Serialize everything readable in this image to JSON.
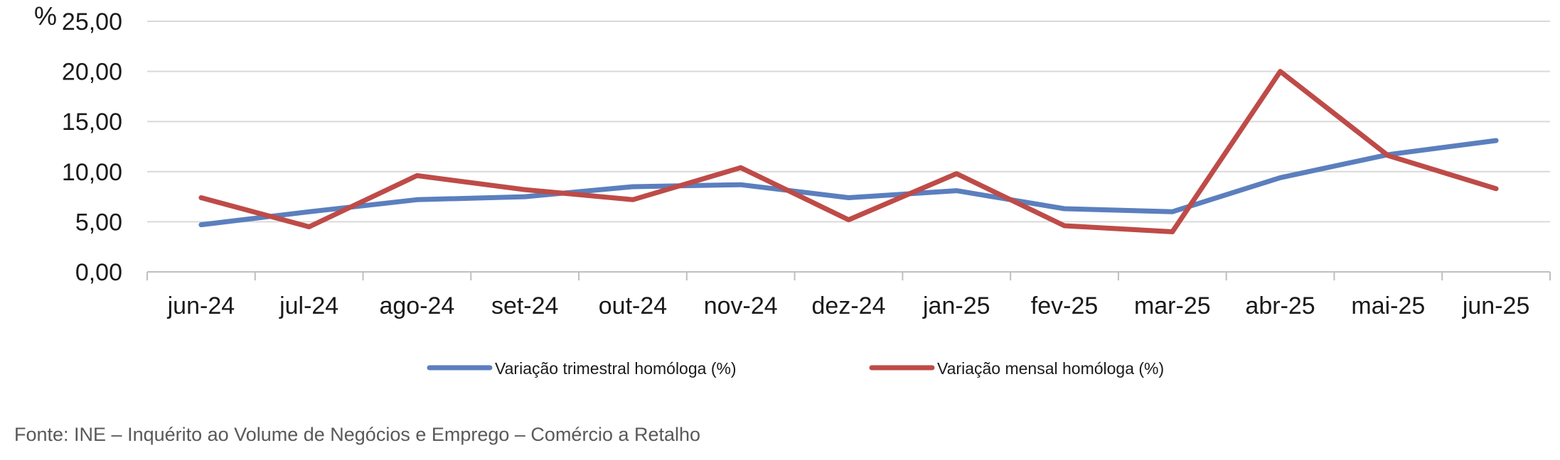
{
  "chart_data": {
    "type": "line",
    "categories": [
      "jun-24",
      "jul-24",
      "ago-24",
      "set-24",
      "out-24",
      "nov-24",
      "dez-24",
      "jan-25",
      "fev-25",
      "mar-25",
      "abr-25",
      "mai-25",
      "jun-25"
    ],
    "series": [
      {
        "name": "Variação trimestral homóloga (%)",
        "color": "#5B7FBE",
        "values": [
          4.7,
          6.0,
          7.2,
          7.5,
          8.5,
          8.7,
          7.4,
          8.1,
          6.3,
          6.0,
          9.4,
          11.7,
          13.1
        ]
      },
      {
        "name": "Variação mensal homóloga (%)",
        "color": "#BE4B48",
        "values": [
          7.4,
          4.5,
          9.6,
          8.2,
          7.2,
          10.4,
          5.2,
          9.8,
          4.6,
          4.0,
          20.0,
          11.6,
          8.3
        ]
      }
    ],
    "yunit": "%",
    "ylim": [
      0,
      25
    ],
    "yticks": [
      "0,00",
      "5,00",
      "10,00",
      "15,00",
      "20,00",
      "25,00"
    ],
    "grid": true,
    "legend_position": "bottom"
  },
  "source": "Fonte: INE – Inquérito ao Volume de Negócios e Emprego – Comércio a Retalho"
}
